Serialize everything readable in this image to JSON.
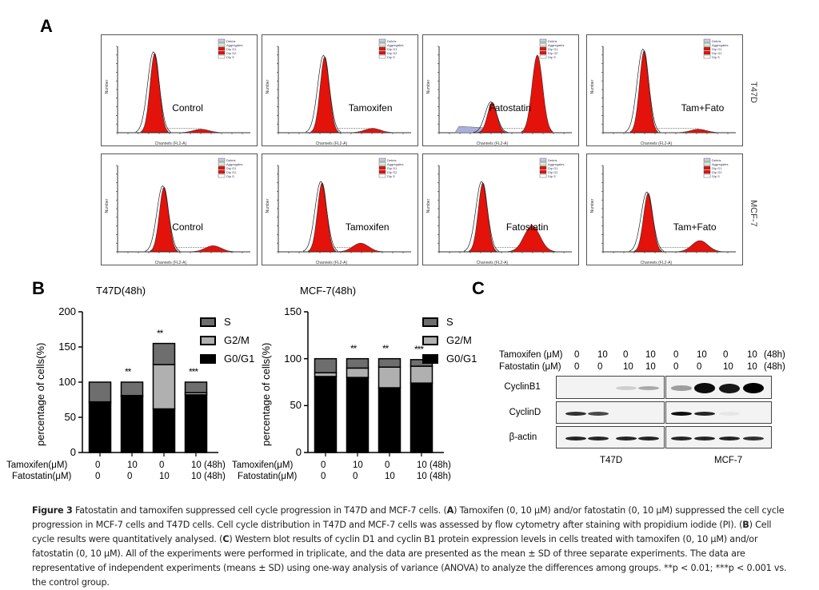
{
  "panels": {
    "A": {
      "letter": "A",
      "row_labels": [
        "T47D",
        "MCF-7"
      ],
      "x_axis_label": "Channels (FL2-A)",
      "y_axis_label": "Number",
      "legend": [
        "Debris",
        "Aggregates",
        "Dip G1",
        "Dip G2",
        "Dip S"
      ],
      "histograms": [
        {
          "cell_line": "T47D",
          "condition": "Control"
        },
        {
          "cell_line": "T47D",
          "condition": "Tamoxifen"
        },
        {
          "cell_line": "T47D",
          "condition": "Fatostatin"
        },
        {
          "cell_line": "T47D",
          "condition": "Tam+Fato"
        },
        {
          "cell_line": "MCF-7",
          "condition": "Control"
        },
        {
          "cell_line": "MCF-7",
          "condition": "Tamoxifen"
        },
        {
          "cell_line": "MCF-7",
          "condition": "Fatostatin"
        },
        {
          "cell_line": "MCF-7",
          "condition": "Tam+Fato"
        }
      ]
    },
    "B": {
      "letter": "B"
    },
    "C": {
      "letter": "C",
      "tamoxifen_label": "Tamoxifen (μM)",
      "fatostatin_label": "Fatostatin  (μM)",
      "tamoxifen_values": [
        "0",
        "10",
        "0",
        "10",
        "0",
        "10",
        "0",
        "10",
        "(48h)"
      ],
      "fatostatin_values": [
        "0",
        "0",
        "10",
        "10",
        "0",
        "0",
        "10",
        "10",
        "(48h)"
      ],
      "proteins": [
        "CyclinB1",
        "CyclinD",
        "β-actin"
      ],
      "cell_lines": [
        "T47D",
        "MCF-7"
      ],
      "band_intensity": {
        "CyclinB1": {
          "T47D": [
            0,
            0,
            0.15,
            0.3
          ],
          "MCF-7": [
            0.35,
            0.95,
            0.9,
            1.0
          ]
        },
        "CyclinD": {
          "T47D": [
            0.8,
            0.7,
            0,
            0
          ],
          "MCF-7": [
            0.95,
            0.85,
            0.05,
            0
          ]
        },
        "β-actin": {
          "T47D": [
            0.85,
            0.85,
            0.85,
            0.85
          ],
          "MCF-7": [
            0.85,
            0.85,
            0.85,
            0.8
          ]
        }
      }
    }
  },
  "chart_data": [
    {
      "type": "bar",
      "stacked": true,
      "title": "T47D(48h)",
      "ylabel": "percentage of  cells(%)",
      "xlabel": "",
      "ylim": [
        0,
        200
      ],
      "yticks": [
        0,
        50,
        100,
        150,
        200
      ],
      "row_labels": [
        "Tamoxifen(μM)",
        "Fatostatin(μM)"
      ],
      "tamoxifen": [
        "0",
        "10",
        "0",
        "10 (48h)"
      ],
      "fatostatin": [
        "0",
        "0",
        "10",
        "10 (48h)"
      ],
      "categories": [
        "0/0",
        "10/0",
        "0/10",
        "10/10"
      ],
      "series": [
        {
          "name": "G0/G1",
          "color": "#000000",
          "values": [
            71,
            80,
            62,
            82
          ]
        },
        {
          "name": "G2/M",
          "color": "#b0b0b0",
          "values": [
            1,
            1,
            63,
            3
          ]
        },
        {
          "name": "S",
          "color": "#6e6e6e",
          "values": [
            28,
            19,
            30,
            15
          ]
        }
      ],
      "significance": [
        "",
        "**",
        "**",
        "***"
      ],
      "legend": [
        "S",
        "G2/M",
        "G0/G1"
      ],
      "legend_position": "right"
    },
    {
      "type": "bar",
      "stacked": true,
      "title": "MCF-7(48h)",
      "ylabel": "percentage of  cells(%)",
      "xlabel": "",
      "ylim": [
        0,
        150
      ],
      "yticks": [
        0,
        50,
        100,
        150
      ],
      "row_labels": [
        "Tamoxifen(μM)",
        "Fatostatin(μM)"
      ],
      "tamoxifen": [
        "0",
        "10",
        "0",
        "10 (48h)"
      ],
      "fatostatin": [
        "0",
        "0",
        "10",
        "10 (48h)"
      ],
      "categories": [
        "0/0",
        "10/0",
        "0/10",
        "10/10"
      ],
      "series": [
        {
          "name": "G0/G1",
          "color": "#000000",
          "values": [
            81,
            80,
            69,
            74
          ]
        },
        {
          "name": "G2/M",
          "color": "#b0b0b0",
          "values": [
            4,
            10,
            22,
            18
          ]
        },
        {
          "name": "S",
          "color": "#6e6e6e",
          "values": [
            15,
            10,
            9,
            7
          ]
        }
      ],
      "significance": [
        "",
        "**",
        "**",
        "***"
      ],
      "legend": [
        "S",
        "G2/M",
        "G0/G1"
      ],
      "legend_position": "right"
    }
  ],
  "caption": {
    "figure_label": "Figure 3",
    "t1": " Fatostatin and tamoxifen suppressed cell cycle progression in T47D and MCF-7 cells. (",
    "A": "A",
    "t2": ") Tamoxifen (0, 10 μM) and/or fatostatin (0, 10 μM) suppressed the cell cycle progression in MCF-7 cells and T47D cells. Cell cycle distribution in T47D and MCF-7 cells was assessed by flow cytometry after staining with propidium iodide (PI). (",
    "B": "B",
    "t3": ") Cell cycle results were quantitatively analysed. (",
    "C": "C",
    "t4": ") Western blot results of cyclin D1 and cyclin B1 protein expression levels in cells treated with tamoxifen (0, 10 μM) and/or fatostatin (0, 10 μM). All of the experiments were performed in triplicate, and the data are presented as the mean ± SD of three separate experiments. The data are representative of independent experiments (means ± SD) using one-way analysis of variance (ANOVA) to analyze the differences among groups. **p < 0.01; ***p < 0.001 vs. the control group."
  }
}
